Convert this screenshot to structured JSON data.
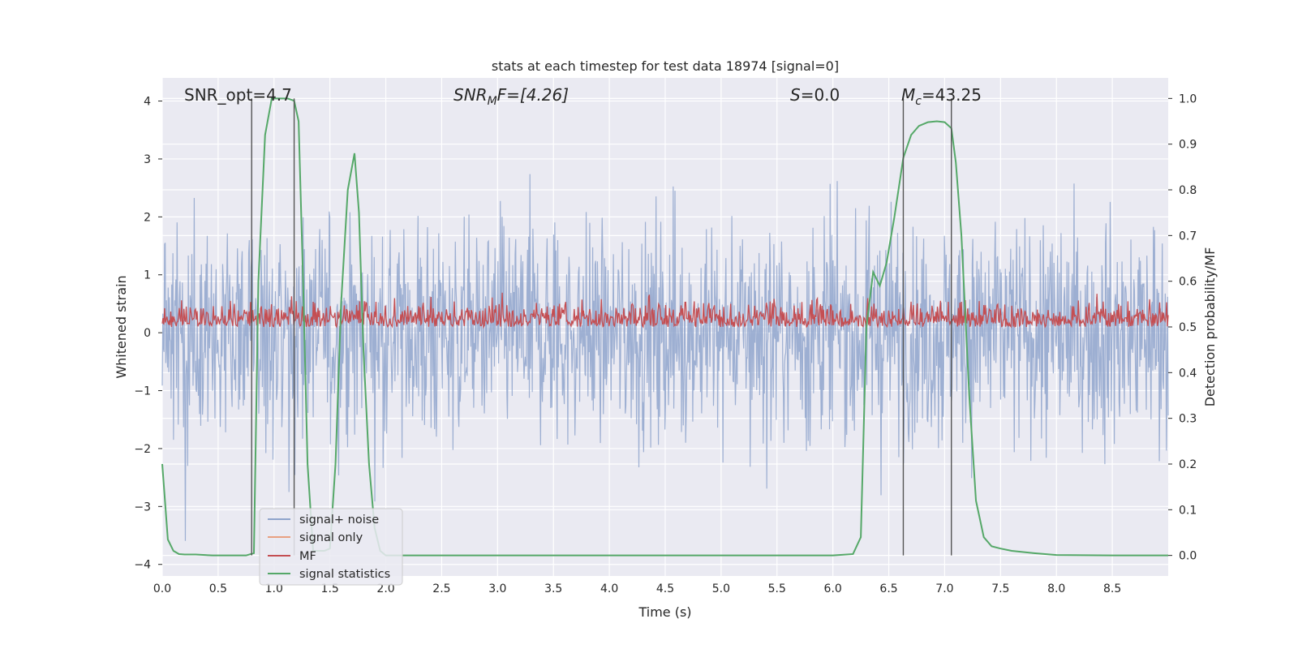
{
  "chart_data": {
    "type": "line",
    "title": "stats at each timestep for test data 18974 [signal=0]",
    "xlabel": "Time (s)",
    "ylabel_left": "Whitened strain",
    "ylabel_right": "Detection probability/MF",
    "xlim": [
      0,
      9.0
    ],
    "ylim_left": [
      -4.2,
      4.4
    ],
    "ylim_right": [
      -0.045,
      1.045
    ],
    "x_ticks": [
      0.0,
      0.5,
      1.0,
      1.5,
      2.0,
      2.5,
      3.0,
      3.5,
      4.0,
      4.5,
      5.0,
      5.5,
      6.0,
      6.5,
      7.0,
      7.5,
      8.0,
      8.5
    ],
    "x_tick_labels": [
      "0.0",
      "0.5",
      "1.0",
      "1.5",
      "2.0",
      "2.5",
      "3.0",
      "3.5",
      "4.0",
      "4.5",
      "5.0",
      "5.5",
      "6.0",
      "6.5",
      "7.0",
      "7.5",
      "8.0",
      "8.5"
    ],
    "y_ticks_left": [
      4,
      3,
      2,
      1,
      0,
      -1,
      -2,
      -3,
      -4
    ],
    "y_tick_labels_left": [
      "4",
      "3",
      "2",
      "1",
      "0",
      "−1",
      "−2",
      "−3",
      "−4"
    ],
    "y_ticks_right": [
      1.0,
      0.9,
      0.8,
      0.7,
      0.6,
      0.5,
      0.4,
      0.3,
      0.2,
      0.1,
      0.0
    ],
    "y_tick_labels_right": [
      "1.0",
      "0.9",
      "0.8",
      "0.7",
      "0.6",
      "0.5",
      "0.4",
      "0.3",
      "0.2",
      "0.1",
      "0.0"
    ],
    "annotations": {
      "snr_opt": "SNR_opt=4.7",
      "snr_mf_label": "SNR",
      "snr_mf_sub": "M",
      "snr_mf_suffix": "F=[4.26]",
      "s_label": "S",
      "s_value": "=0.0",
      "mc_label": "M",
      "mc_sub": "c",
      "mc_value": "=43.25"
    },
    "vertical_lines_x": [
      0.8,
      1.18,
      6.63,
      7.06
    ],
    "series": [
      {
        "name": "signal+ noise",
        "axis": "left",
        "color": "#8fa4cc",
        "description": "whitened noise, approx. Gaussian, amplitude ~ -3.8 to 4.0",
        "upper_envelope_approx": 2.6,
        "lower_envelope_approx": -2.5
      },
      {
        "name": "signal only",
        "axis": "left",
        "color": "#e8a081",
        "values": []
      },
      {
        "name": "MF",
        "axis": "right",
        "color": "#c44e52",
        "description": "matched filter output, fluctuating between ~0.5 and ~0.6 on right axis",
        "range": [
          0.5,
          0.6
        ]
      },
      {
        "name": "signal statistics",
        "axis": "right",
        "color": "#55a868",
        "x": [
          0.0,
          0.05,
          0.1,
          0.15,
          0.2,
          0.3,
          0.45,
          0.6,
          0.75,
          0.82,
          0.86,
          0.92,
          0.98,
          1.05,
          1.12,
          1.18,
          1.22,
          1.26,
          1.3,
          1.35,
          1.4,
          1.45,
          1.5,
          1.55,
          1.6,
          1.66,
          1.72,
          1.76,
          1.8,
          1.85,
          1.9,
          1.95,
          2.0,
          2.5,
          3.0,
          4.0,
          5.0,
          6.0,
          6.18,
          6.25,
          6.3,
          6.36,
          6.42,
          6.48,
          6.55,
          6.63,
          6.7,
          6.77,
          6.85,
          6.93,
          7.0,
          7.06,
          7.1,
          7.15,
          7.22,
          7.28,
          7.35,
          7.42,
          7.5,
          7.6,
          7.8,
          8.0,
          8.5,
          9.0
        ],
        "y": [
          0.2,
          0.035,
          0.01,
          0.003,
          0.002,
          0.002,
          0.0,
          0.0,
          0.0,
          0.005,
          0.6,
          0.92,
          1.0,
          1.0,
          1.0,
          0.995,
          0.95,
          0.6,
          0.2,
          0.01,
          0.01,
          0.01,
          0.015,
          0.2,
          0.55,
          0.8,
          0.88,
          0.75,
          0.45,
          0.2,
          0.06,
          0.01,
          0.0,
          0.0,
          0.0,
          0.0,
          0.0,
          0.0,
          0.003,
          0.04,
          0.5,
          0.62,
          0.59,
          0.64,
          0.74,
          0.87,
          0.92,
          0.94,
          0.948,
          0.95,
          0.948,
          0.935,
          0.86,
          0.7,
          0.35,
          0.12,
          0.04,
          0.02,
          0.015,
          0.01,
          0.005,
          0.001,
          0.0,
          0.0
        ]
      }
    ],
    "legend": {
      "placement": "lower-left",
      "entries": [
        {
          "label": "signal+ noise",
          "color": "#8fa4cc"
        },
        {
          "label": "signal only",
          "color": "#e8a081"
        },
        {
          "label": "MF",
          "color": "#c44e52"
        },
        {
          "label": "signal statistics",
          "color": "#55a868"
        }
      ]
    },
    "grid": true
  }
}
